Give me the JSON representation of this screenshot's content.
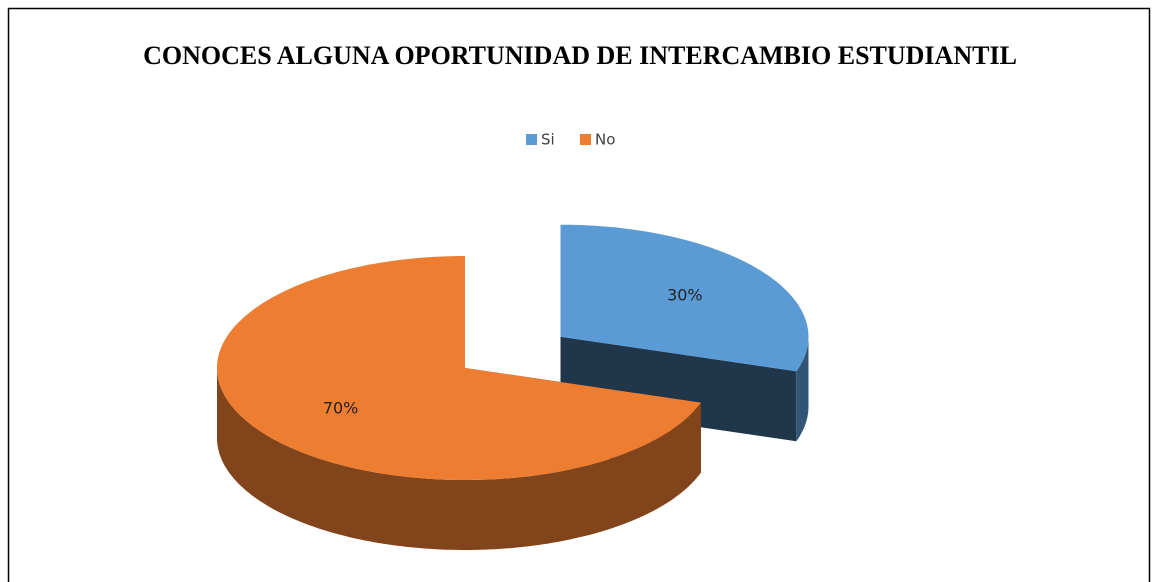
{
  "chart_data": {
    "type": "pie",
    "title": "CONOCES ALGUNA OPORTUNIDAD DE INTERCAMBIO ESTUDIANTIL",
    "categories": [
      "Si",
      "No"
    ],
    "values": [
      30,
      70
    ],
    "value_labels": [
      "30%",
      "70%"
    ],
    "colors": [
      "#5b9bd5",
      "#ed7d31"
    ],
    "legend": "top"
  }
}
